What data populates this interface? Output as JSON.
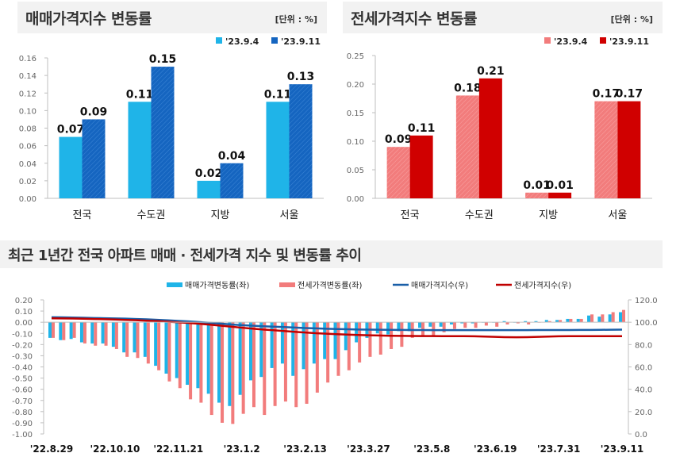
{
  "chart_data": [
    {
      "type": "bar",
      "title": "매매가격지수 변동률",
      "unit": "[단위 : %]",
      "categories": [
        "전국",
        "수도권",
        "지방",
        "서울"
      ],
      "series": [
        {
          "name": "'23.9.4",
          "values": [
            0.07,
            0.11,
            0.02,
            0.11
          ],
          "color": "#1fb4e8"
        },
        {
          "name": "'23.9.11",
          "values": [
            0.09,
            0.15,
            0.04,
            0.13
          ],
          "color": "#1565c0"
        }
      ],
      "ylim": [
        0,
        0.16
      ],
      "yticks": [
        "0.00",
        "0.02",
        "0.04",
        "0.06",
        "0.08",
        "0.10",
        "0.12",
        "0.14",
        "0.16"
      ],
      "legend": "top-right",
      "grid": false
    },
    {
      "type": "bar",
      "title": "전세가격지수 변동률",
      "unit": "[단위 : %]",
      "categories": [
        "전국",
        "수도권",
        "지방",
        "서울"
      ],
      "series": [
        {
          "name": "'23.9.4",
          "values": [
            0.09,
            0.18,
            0.01,
            0.17
          ],
          "color": "#f27c7c"
        },
        {
          "name": "'23.9.11",
          "values": [
            0.11,
            0.21,
            0.01,
            0.17
          ],
          "color": "#d00000"
        }
      ],
      "ylim": [
        0,
        0.25
      ],
      "yticks": [
        "0.00",
        "0.05",
        "0.10",
        "0.15",
        "0.20",
        "0.25"
      ],
      "legend": "top-right",
      "grid": false
    },
    {
      "type": "bar+line",
      "title": "최근 1년간 전국 아파트 매매 · 전세가격 지수 및 변동률 추이",
      "xtick_labels": [
        "'22.8.29",
        "'22.10.10",
        "'22.11.21",
        "'23.1.2",
        "'23.2.13",
        "'23.3.27",
        "'23.5.8",
        "'23.6.19",
        "'23.7.31",
        "'23.9.11"
      ],
      "ylim_left": [
        -1.0,
        0.2
      ],
      "yticks_left": [
        "0.20",
        "0.10",
        "0.00",
        "-0.10",
        "-0.20",
        "-0.30",
        "-0.40",
        "-0.50",
        "-0.60",
        "-0.70",
        "-0.80",
        "-0.90",
        "-1.00"
      ],
      "ylim_right": [
        0,
        120
      ],
      "yticks_right": [
        "120.0",
        "100.0",
        "80.0",
        "60.0",
        "40.0",
        "20.0",
        "0.0"
      ],
      "legend": "top",
      "series": [
        {
          "name": "매매가격변동률(좌)",
          "kind": "bar",
          "axis": "left",
          "color": "#1fb4e8",
          "values": [
            -0.14,
            -0.16,
            -0.15,
            -0.18,
            -0.19,
            -0.19,
            -0.22,
            -0.27,
            -0.27,
            -0.31,
            -0.39,
            -0.46,
            -0.5,
            -0.56,
            -0.59,
            -0.64,
            -0.72,
            -0.75,
            -0.65,
            -0.52,
            -0.49,
            -0.41,
            -0.37,
            -0.48,
            -0.42,
            -0.37,
            -0.33,
            -0.33,
            -0.25,
            -0.18,
            -0.14,
            -0.1,
            -0.11,
            -0.08,
            -0.08,
            -0.05,
            -0.04,
            -0.04,
            -0.02,
            -0.01,
            -0.01,
            0.0,
            0.0,
            0.01,
            0.0,
            0.01,
            0.01,
            0.02,
            0.02,
            0.03,
            0.03,
            0.06,
            0.05,
            0.07,
            0.09
          ]
        },
        {
          "name": "전세가격변동률(좌)",
          "kind": "bar",
          "axis": "left",
          "color": "#f27c7c",
          "values": [
            -0.14,
            -0.16,
            -0.14,
            -0.19,
            -0.21,
            -0.21,
            -0.24,
            -0.31,
            -0.32,
            -0.37,
            -0.43,
            -0.53,
            -0.59,
            -0.69,
            -0.72,
            -0.83,
            -0.9,
            -0.91,
            -0.82,
            -0.76,
            -0.83,
            -0.75,
            -0.71,
            -0.76,
            -0.73,
            -0.63,
            -0.54,
            -0.48,
            -0.43,
            -0.36,
            -0.31,
            -0.29,
            -0.24,
            -0.22,
            -0.14,
            -0.13,
            -0.13,
            -0.09,
            -0.06,
            -0.05,
            -0.05,
            -0.03,
            -0.04,
            -0.02,
            -0.01,
            -0.02,
            0.0,
            0.01,
            0.02,
            0.03,
            0.03,
            0.07,
            0.07,
            0.09,
            0.11
          ]
        },
        {
          "name": "매매가격지수(우)",
          "kind": "line",
          "axis": "right",
          "color": "#1a5fa8",
          "values": [
            104.5,
            104.4,
            104.2,
            104.0,
            103.8,
            103.6,
            103.4,
            103.2,
            102.9,
            102.6,
            102.2,
            101.7,
            101.2,
            100.7,
            100.1,
            99.5,
            98.8,
            98.0,
            97.4,
            96.9,
            96.4,
            96.0,
            95.7,
            95.2,
            94.8,
            94.5,
            94.2,
            93.9,
            93.7,
            93.5,
            93.4,
            93.3,
            93.2,
            93.1,
            93.0,
            93.0,
            92.9,
            92.9,
            92.9,
            92.9,
            92.9,
            92.9,
            92.9,
            92.9,
            92.9,
            92.9,
            93.0,
            93.0,
            93.0,
            93.0,
            93.1,
            93.1,
            93.2,
            93.3,
            93.4
          ]
        },
        {
          "name": "전세가격지수(우)",
          "kind": "line",
          "axis": "right",
          "color": "#c00000",
          "values": [
            103.5,
            103.4,
            103.3,
            103.1,
            102.9,
            102.7,
            102.4,
            102.1,
            101.8,
            101.4,
            101.0,
            100.5,
            99.9,
            99.3,
            98.6,
            97.8,
            96.9,
            96.0,
            95.1,
            94.3,
            93.5,
            92.8,
            92.1,
            91.4,
            90.8,
            90.2,
            89.7,
            89.3,
            88.9,
            88.6,
            88.3,
            88.1,
            87.9,
            87.8,
            87.7,
            87.6,
            87.6,
            87.5,
            87.5,
            87.5,
            87.4,
            87.2,
            86.9,
            86.6,
            86.5,
            86.6,
            86.9,
            87.2,
            87.4,
            87.5,
            87.5,
            87.5,
            87.5,
            87.5,
            87.5
          ]
        }
      ]
    }
  ]
}
